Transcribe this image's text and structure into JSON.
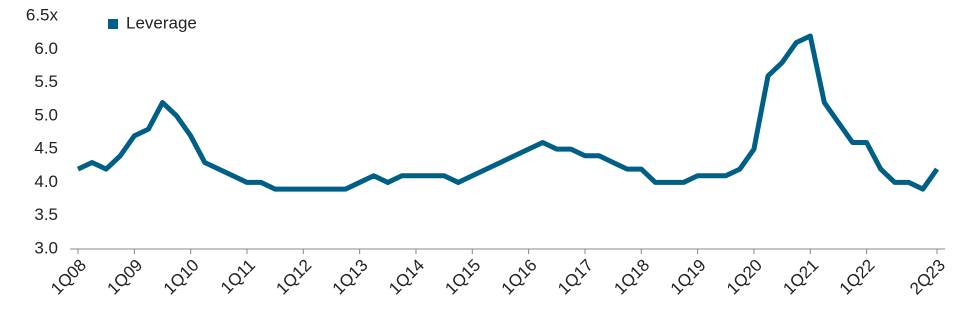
{
  "chart_data": {
    "type": "line",
    "categories": [
      "1Q08",
      null,
      null,
      null,
      "1Q09",
      null,
      null,
      null,
      "1Q10",
      null,
      null,
      null,
      "1Q11",
      null,
      null,
      null,
      "1Q12",
      null,
      null,
      null,
      "1Q13",
      null,
      null,
      null,
      "1Q14",
      null,
      null,
      null,
      "1Q15",
      null,
      null,
      null,
      "1Q16",
      null,
      null,
      null,
      "1Q17",
      null,
      null,
      null,
      "1Q18",
      null,
      null,
      null,
      "1Q19",
      null,
      null,
      null,
      "1Q20",
      null,
      null,
      null,
      "1Q21",
      null,
      null,
      null,
      "1Q22",
      null,
      null,
      null,
      null,
      "2Q23"
    ],
    "series": [
      {
        "name": "Leverage",
        "color": "#005f86",
        "values": [
          4.2,
          4.3,
          4.2,
          4.4,
          4.7,
          4.8,
          5.2,
          5.0,
          4.7,
          4.3,
          4.2,
          4.1,
          4.0,
          4.0,
          3.9,
          3.9,
          3.9,
          3.9,
          3.9,
          3.9,
          4.0,
          4.1,
          4.0,
          4.1,
          4.1,
          4.1,
          4.1,
          4.0,
          4.1,
          4.2,
          4.3,
          4.4,
          4.5,
          4.6,
          4.5,
          4.5,
          4.4,
          4.4,
          4.3,
          4.2,
          4.2,
          4.0,
          4.0,
          4.0,
          4.1,
          4.1,
          4.1,
          4.2,
          4.5,
          5.6,
          5.8,
          6.1,
          6.2,
          5.2,
          4.9,
          4.6,
          4.6,
          4.2,
          4.0,
          4.0,
          3.9,
          4.2
        ]
      }
    ],
    "ylim": [
      3.0,
      6.5
    ],
    "yticks": [
      {
        "value": 3.0,
        "label": "3.0"
      },
      3.5,
      {
        "value": 4.0,
        "label": "4.0"
      },
      4.5,
      {
        "value": 5.0,
        "label": "5.0"
      },
      5.5,
      {
        "value": 6.0,
        "label": "6.0"
      },
      {
        "value": 6.5,
        "label": "6.5x"
      }
    ],
    "grid": false,
    "legend": "top-left"
  }
}
